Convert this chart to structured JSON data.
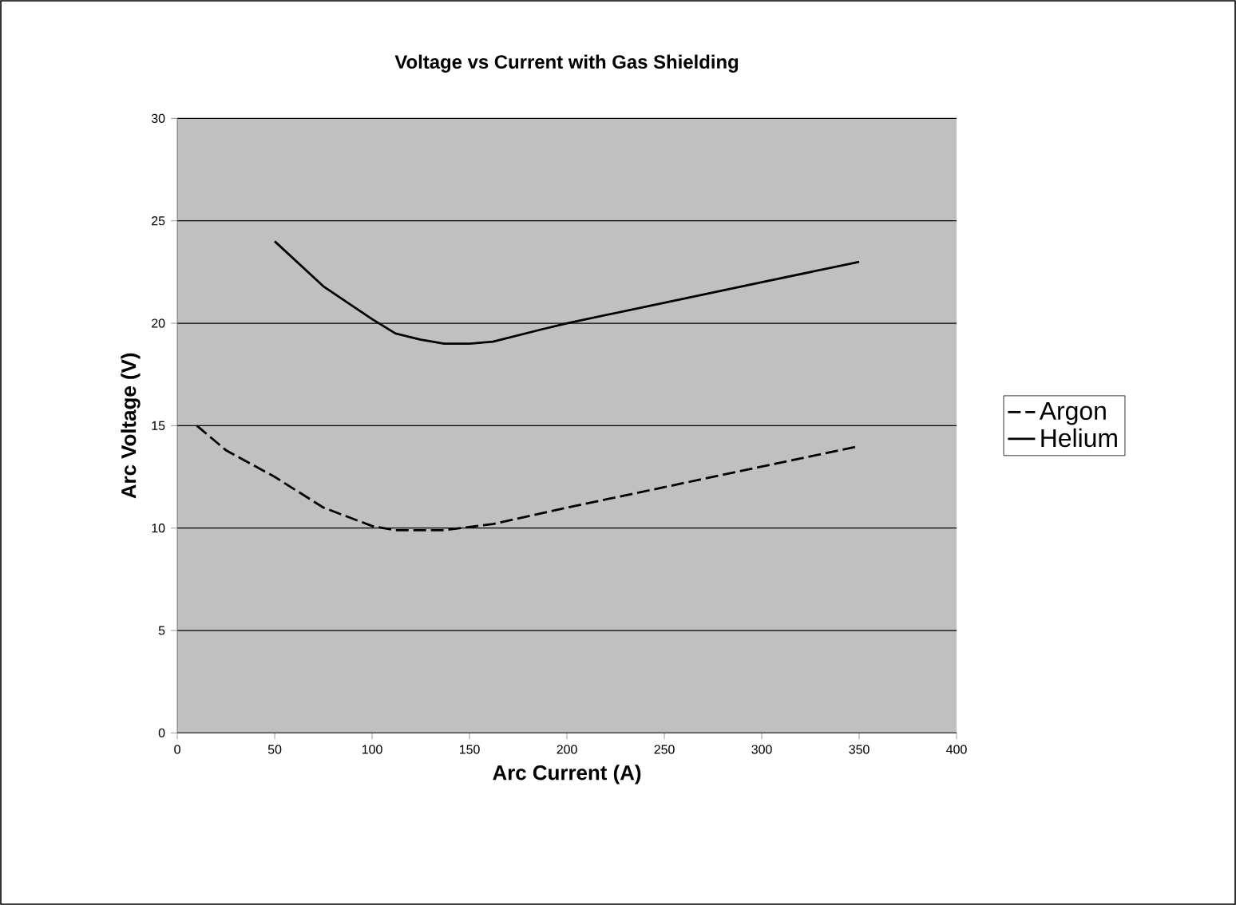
{
  "chart_data": {
    "type": "line",
    "title": "Voltage vs Current with Gas Shielding",
    "xlabel": "Arc Current (A)",
    "ylabel": "Arc Voltage (V)",
    "xlim": [
      0,
      400
    ],
    "xticks": [
      0,
      50,
      100,
      150,
      200,
      250,
      300,
      350,
      400
    ],
    "ylim": [
      0,
      30
    ],
    "yticks": [
      0,
      5,
      10,
      15,
      20,
      25,
      30
    ],
    "grid": "y",
    "legend": "right",
    "marker": "none",
    "series": [
      {
        "name": "Argon",
        "color": "#000000",
        "line_style": "dashed",
        "x": [
          10,
          25,
          50,
          75,
          100,
          112,
          137,
          162,
          200,
          250,
          300,
          350
        ],
        "values": [
          15,
          13.8,
          12.5,
          11,
          10.1,
          9.9,
          9.9,
          10.2,
          11,
          12,
          13,
          14
        ]
      },
      {
        "name": "Helium",
        "color": "#000000",
        "line_style": "solid",
        "x": [
          50,
          75,
          100,
          112,
          125,
          137,
          150,
          162,
          187,
          200,
          250,
          275,
          300,
          350
        ],
        "values": [
          24,
          21.8,
          20.2,
          19.5,
          19.2,
          19,
          19,
          19.1,
          19.7,
          20,
          21,
          21.5,
          22,
          23
        ]
      }
    ]
  }
}
